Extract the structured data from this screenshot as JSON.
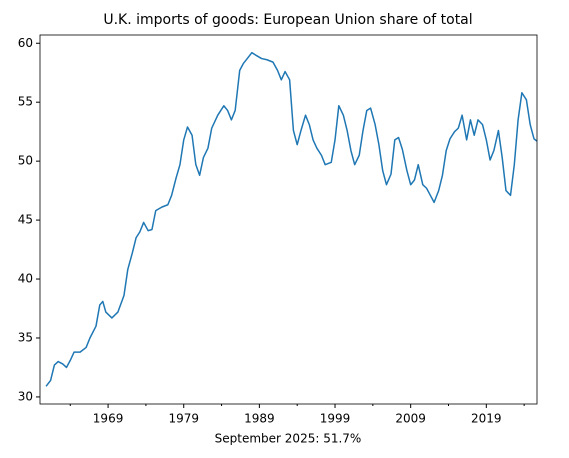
{
  "chart_data": {
    "type": "line",
    "title": "U.K. imports of goods: European Union share of total",
    "xlabel": "September 2025: 51.7%",
    "color": "#1f77b4",
    "x": [
      1960.8,
      1961.4,
      1961.9,
      1962.4,
      1963.0,
      1963.5,
      1964.0,
      1964.5,
      1965.3,
      1966.1,
      1966.6,
      1967.4,
      1967.9,
      1968.3,
      1968.7,
      1969.5,
      1970.3,
      1971.1,
      1971.6,
      1972.2,
      1972.7,
      1973.2,
      1973.7,
      1974.3,
      1974.8,
      1975.3,
      1976.1,
      1976.9,
      1977.4,
      1978.0,
      1978.5,
      1979.0,
      1979.5,
      1980.1,
      1980.6,
      1981.1,
      1981.6,
      1982.2,
      1982.7,
      1983.5,
      1984.3,
      1984.8,
      1985.3,
      1985.8,
      1986.4,
      1986.9,
      1987.4,
      1988.0,
      1988.5,
      1989.3,
      1990.0,
      1990.8,
      1991.4,
      1991.9,
      1992.4,
      1993.0,
      1993.5,
      1994.0,
      1994.5,
      1995.1,
      1995.6,
      1996.1,
      1996.6,
      1997.2,
      1997.7,
      1998.5,
      1999.0,
      1999.5,
      2000.1,
      2000.6,
      2001.1,
      2001.6,
      2002.2,
      2002.7,
      2003.2,
      2003.7,
      2004.3,
      2004.8,
      2005.3,
      2005.8,
      2006.4,
      2006.9,
      2007.4,
      2007.9,
      2008.5,
      2009.0,
      2009.5,
      2010.0,
      2010.6,
      2011.1,
      2011.6,
      2012.1,
      2012.7,
      2013.2,
      2013.7,
      2014.2,
      2014.8,
      2015.3,
      2015.8,
      2016.4,
      2016.9,
      2017.4,
      2017.9,
      2018.5,
      2019.0,
      2019.5,
      2020.0,
      2020.6,
      2021.1,
      2021.6,
      2022.2,
      2022.7,
      2023.2,
      2023.7,
      2024.3,
      2024.8,
      2025.3,
      2025.67
    ],
    "values": [
      30.9,
      31.4,
      32.7,
      33.0,
      32.8,
      32.5,
      33.1,
      33.8,
      33.8,
      34.2,
      35.0,
      36.0,
      37.8,
      38.1,
      37.2,
      36.7,
      37.2,
      38.6,
      40.8,
      42.2,
      43.5,
      44.0,
      44.8,
      44.1,
      44.2,
      45.8,
      46.1,
      46.3,
      47.1,
      48.6,
      49.7,
      51.8,
      52.9,
      52.2,
      49.7,
      48.8,
      50.3,
      51.1,
      52.8,
      53.9,
      54.7,
      54.3,
      53.5,
      54.3,
      57.7,
      58.3,
      58.7,
      59.2,
      59.0,
      58.7,
      58.6,
      58.4,
      57.7,
      56.9,
      57.6,
      56.9,
      52.6,
      51.4,
      52.6,
      53.9,
      53.1,
      51.8,
      51.1,
      50.5,
      49.7,
      49.9,
      51.8,
      54.7,
      53.9,
      52.6,
      50.9,
      49.7,
      50.5,
      52.6,
      54.3,
      54.5,
      53.1,
      51.4,
      49.2,
      48.0,
      48.9,
      51.8,
      52.0,
      51.0,
      49.2,
      48.0,
      48.4,
      49.7,
      48.0,
      47.7,
      47.1,
      46.5,
      47.5,
      48.8,
      50.9,
      51.9,
      52.5,
      52.8,
      53.9,
      51.8,
      53.5,
      52.2,
      53.5,
      53.1,
      51.8,
      50.1,
      50.9,
      52.6,
      50.3,
      47.5,
      47.1,
      49.7,
      53.5,
      55.8,
      55.2,
      53.1,
      51.9,
      51.7
    ],
    "xlim": [
      1960,
      2025.7
    ],
    "xticks": [
      1969,
      1979,
      1989,
      1999,
      2009,
      2019
    ],
    "xminorticks": [
      1964,
      1974,
      1984,
      1994,
      2004,
      2014,
      2024
    ],
    "ylim": [
      29.4,
      60.7
    ],
    "yticks": [
      30,
      35,
      40,
      45,
      50,
      55,
      60
    ]
  }
}
